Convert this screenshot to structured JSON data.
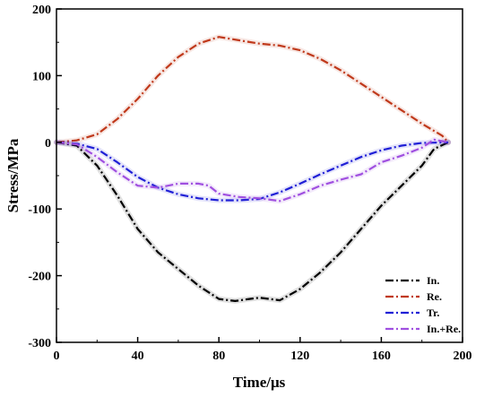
{
  "chart_data": {
    "type": "line",
    "xlabel": "Time/μs",
    "ylabel": "Stress/MPa",
    "xlim": [
      0,
      200
    ],
    "ylim": [
      -300,
      200
    ],
    "xticks": [
      0,
      40,
      80,
      120,
      160,
      200
    ],
    "yticks": [
      -300,
      -200,
      -100,
      0,
      100,
      200
    ],
    "grid": false,
    "legend_position": "bottom-right",
    "series": [
      {
        "name": "In.",
        "color": "#000000",
        "dash": "dash-dot",
        "x": [
          0,
          10,
          20,
          30,
          40,
          50,
          60,
          70,
          80,
          88,
          95,
          100,
          110,
          120,
          130,
          140,
          150,
          160,
          170,
          180,
          186,
          193
        ],
        "y": [
          0,
          -5,
          -35,
          -80,
          -130,
          -165,
          -190,
          -215,
          -235,
          -238,
          -235,
          -233,
          -237,
          -220,
          -195,
          -165,
          -130,
          -95,
          -65,
          -35,
          -10,
          0
        ]
      },
      {
        "name": "Re.",
        "color": "#c0391b",
        "dash": "dash-dot",
        "x": [
          0,
          10,
          20,
          30,
          40,
          50,
          60,
          70,
          80,
          90,
          100,
          110,
          120,
          130,
          140,
          150,
          160,
          170,
          180,
          190,
          193
        ],
        "y": [
          0,
          3,
          12,
          35,
          65,
          100,
          128,
          148,
          158,
          153,
          148,
          145,
          138,
          125,
          108,
          88,
          68,
          48,
          28,
          10,
          0
        ]
      },
      {
        "name": "Tr.",
        "color": "#1f1fd6",
        "dash": "dash-dot",
        "x": [
          0,
          10,
          20,
          30,
          40,
          50,
          60,
          70,
          80,
          90,
          100,
          110,
          120,
          130,
          140,
          150,
          160,
          170,
          180,
          193
        ],
        "y": [
          0,
          -2,
          -10,
          -30,
          -52,
          -68,
          -78,
          -84,
          -87,
          -87,
          -85,
          -75,
          -62,
          -48,
          -35,
          -22,
          -12,
          -5,
          -1,
          0
        ]
      },
      {
        "name": "In.+Re.",
        "color": "#a050e0",
        "dash": "dash-dot",
        "x": [
          0,
          10,
          20,
          30,
          40,
          50,
          60,
          70,
          75,
          80,
          90,
          100,
          110,
          120,
          130,
          140,
          150,
          160,
          170,
          180,
          186,
          193
        ],
        "y": [
          0,
          -3,
          -22,
          -45,
          -65,
          -68,
          -62,
          -62,
          -65,
          -77,
          -82,
          -84,
          -88,
          -78,
          -65,
          -56,
          -48,
          -30,
          -20,
          -8,
          4,
          0
        ]
      }
    ]
  }
}
